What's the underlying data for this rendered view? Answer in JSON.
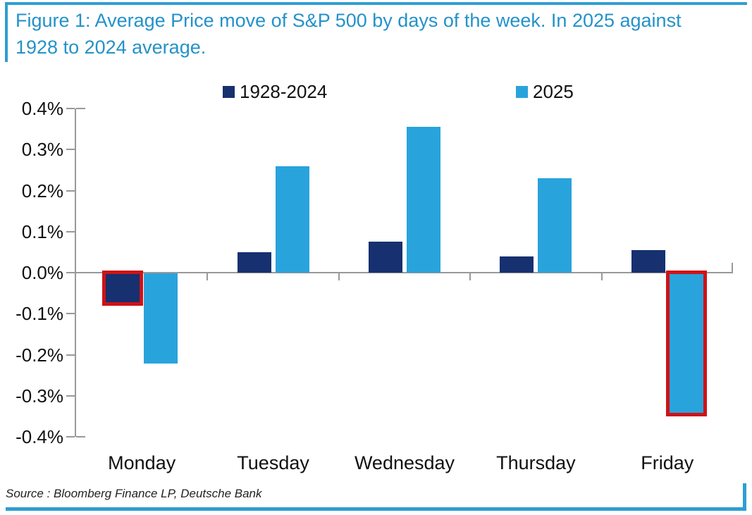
{
  "title": {
    "line1": "Figure 1: Average Price move of S&P 500 by days of the week. In 2025 against",
    "line2": "1928 to 2024 average."
  },
  "legend": {
    "items": [
      {
        "label": "1928-2024",
        "color": "#17306f"
      },
      {
        "label": "2025",
        "color": "#29a3dc"
      }
    ]
  },
  "source": "Source : Bloomberg Finance LP, Deutsche Bank",
  "colors": {
    "accent_blue": "#2492c9",
    "border_blue": "#2e9ed2",
    "navy": "#17306f",
    "light_blue": "#29a3dc",
    "highlight_red": "#ce1217",
    "axis_gray": "#999999",
    "text_black": "#111111"
  },
  "chart_data": {
    "type": "bar",
    "title": "Figure 1: Average Price move of S&P 500 by days of the week. In 2025 against 1928 to 2024 average.",
    "categories": [
      "Monday",
      "Tuesday",
      "Wednesday",
      "Thursday",
      "Friday"
    ],
    "series": [
      {
        "name": "1928-2024",
        "color": "#17306f",
        "values": [
          -0.07,
          0.05,
          0.075,
          0.04,
          0.055
        ]
      },
      {
        "name": "2025",
        "color": "#29a3dc",
        "values": [
          -0.22,
          0.26,
          0.355,
          0.23,
          -0.34
        ]
      }
    ],
    "unit": "%",
    "y_tick_labels": [
      "0.4%",
      "0.3%",
      "0.2%",
      "0.1%",
      "0.0%",
      "-0.1%",
      "-0.2%",
      "-0.3%",
      "-0.4%"
    ],
    "y_tick_values": [
      0.4,
      0.3,
      0.2,
      0.1,
      0.0,
      -0.1,
      -0.2,
      -0.3,
      -0.4
    ],
    "ylim": [
      -0.4,
      0.4
    ],
    "grid": false,
    "legend_position": "top",
    "highlights": [
      {
        "series_index": 0,
        "category_index": 0
      },
      {
        "series_index": 1,
        "category_index": 4
      }
    ],
    "highlight_color": "#ce1217"
  }
}
